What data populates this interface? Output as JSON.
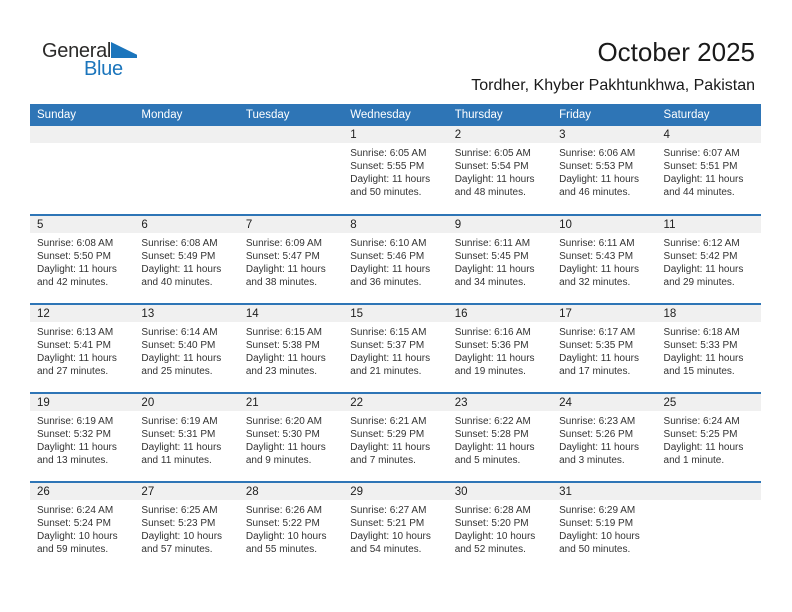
{
  "logo": {
    "text_top": "General",
    "text_bottom": "Blue"
  },
  "titles": {
    "month_year": "October 2025",
    "location": "Tordher, Khyber Pakhtunkhwa, Pakistan"
  },
  "colors": {
    "header_blue": "#2E75B6",
    "separator_blue": "#2E75B6",
    "band_gray": "#F0F0F0",
    "logo_blue": "#1B75BC"
  },
  "calendar": {
    "day_headers": [
      "Sunday",
      "Monday",
      "Tuesday",
      "Wednesday",
      "Thursday",
      "Friday",
      "Saturday"
    ],
    "weeks": [
      [
        null,
        null,
        null,
        {
          "date": "1",
          "sunrise": "Sunrise: 6:05 AM",
          "sunset": "Sunset: 5:55 PM",
          "daylight": "Daylight: 11 hours and 50 minutes."
        },
        {
          "date": "2",
          "sunrise": "Sunrise: 6:05 AM",
          "sunset": "Sunset: 5:54 PM",
          "daylight": "Daylight: 11 hours and 48 minutes."
        },
        {
          "date": "3",
          "sunrise": "Sunrise: 6:06 AM",
          "sunset": "Sunset: 5:53 PM",
          "daylight": "Daylight: 11 hours and 46 minutes."
        },
        {
          "date": "4",
          "sunrise": "Sunrise: 6:07 AM",
          "sunset": "Sunset: 5:51 PM",
          "daylight": "Daylight: 11 hours and 44 minutes."
        }
      ],
      [
        {
          "date": "5",
          "sunrise": "Sunrise: 6:08 AM",
          "sunset": "Sunset: 5:50 PM",
          "daylight": "Daylight: 11 hours and 42 minutes."
        },
        {
          "date": "6",
          "sunrise": "Sunrise: 6:08 AM",
          "sunset": "Sunset: 5:49 PM",
          "daylight": "Daylight: 11 hours and 40 minutes."
        },
        {
          "date": "7",
          "sunrise": "Sunrise: 6:09 AM",
          "sunset": "Sunset: 5:47 PM",
          "daylight": "Daylight: 11 hours and 38 minutes."
        },
        {
          "date": "8",
          "sunrise": "Sunrise: 6:10 AM",
          "sunset": "Sunset: 5:46 PM",
          "daylight": "Daylight: 11 hours and 36 minutes."
        },
        {
          "date": "9",
          "sunrise": "Sunrise: 6:11 AM",
          "sunset": "Sunset: 5:45 PM",
          "daylight": "Daylight: 11 hours and 34 minutes."
        },
        {
          "date": "10",
          "sunrise": "Sunrise: 6:11 AM",
          "sunset": "Sunset: 5:43 PM",
          "daylight": "Daylight: 11 hours and 32 minutes."
        },
        {
          "date": "11",
          "sunrise": "Sunrise: 6:12 AM",
          "sunset": "Sunset: 5:42 PM",
          "daylight": "Daylight: 11 hours and 29 minutes."
        }
      ],
      [
        {
          "date": "12",
          "sunrise": "Sunrise: 6:13 AM",
          "sunset": "Sunset: 5:41 PM",
          "daylight": "Daylight: 11 hours and 27 minutes."
        },
        {
          "date": "13",
          "sunrise": "Sunrise: 6:14 AM",
          "sunset": "Sunset: 5:40 PM",
          "daylight": "Daylight: 11 hours and 25 minutes."
        },
        {
          "date": "14",
          "sunrise": "Sunrise: 6:15 AM",
          "sunset": "Sunset: 5:38 PM",
          "daylight": "Daylight: 11 hours and 23 minutes."
        },
        {
          "date": "15",
          "sunrise": "Sunrise: 6:15 AM",
          "sunset": "Sunset: 5:37 PM",
          "daylight": "Daylight: 11 hours and 21 minutes."
        },
        {
          "date": "16",
          "sunrise": "Sunrise: 6:16 AM",
          "sunset": "Sunset: 5:36 PM",
          "daylight": "Daylight: 11 hours and 19 minutes."
        },
        {
          "date": "17",
          "sunrise": "Sunrise: 6:17 AM",
          "sunset": "Sunset: 5:35 PM",
          "daylight": "Daylight: 11 hours and 17 minutes."
        },
        {
          "date": "18",
          "sunrise": "Sunrise: 6:18 AM",
          "sunset": "Sunset: 5:33 PM",
          "daylight": "Daylight: 11 hours and 15 minutes."
        }
      ],
      [
        {
          "date": "19",
          "sunrise": "Sunrise: 6:19 AM",
          "sunset": "Sunset: 5:32 PM",
          "daylight": "Daylight: 11 hours and 13 minutes."
        },
        {
          "date": "20",
          "sunrise": "Sunrise: 6:19 AM",
          "sunset": "Sunset: 5:31 PM",
          "daylight": "Daylight: 11 hours and 11 minutes."
        },
        {
          "date": "21",
          "sunrise": "Sunrise: 6:20 AM",
          "sunset": "Sunset: 5:30 PM",
          "daylight": "Daylight: 11 hours and 9 minutes."
        },
        {
          "date": "22",
          "sunrise": "Sunrise: 6:21 AM",
          "sunset": "Sunset: 5:29 PM",
          "daylight": "Daylight: 11 hours and 7 minutes."
        },
        {
          "date": "23",
          "sunrise": "Sunrise: 6:22 AM",
          "sunset": "Sunset: 5:28 PM",
          "daylight": "Daylight: 11 hours and 5 minutes."
        },
        {
          "date": "24",
          "sunrise": "Sunrise: 6:23 AM",
          "sunset": "Sunset: 5:26 PM",
          "daylight": "Daylight: 11 hours and 3 minutes."
        },
        {
          "date": "25",
          "sunrise": "Sunrise: 6:24 AM",
          "sunset": "Sunset: 5:25 PM",
          "daylight": "Daylight: 11 hours and 1 minute."
        }
      ],
      [
        {
          "date": "26",
          "sunrise": "Sunrise: 6:24 AM",
          "sunset": "Sunset: 5:24 PM",
          "daylight": "Daylight: 10 hours and 59 minutes."
        },
        {
          "date": "27",
          "sunrise": "Sunrise: 6:25 AM",
          "sunset": "Sunset: 5:23 PM",
          "daylight": "Daylight: 10 hours and 57 minutes."
        },
        {
          "date": "28",
          "sunrise": "Sunrise: 6:26 AM",
          "sunset": "Sunset: 5:22 PM",
          "daylight": "Daylight: 10 hours and 55 minutes."
        },
        {
          "date": "29",
          "sunrise": "Sunrise: 6:27 AM",
          "sunset": "Sunset: 5:21 PM",
          "daylight": "Daylight: 10 hours and 54 minutes."
        },
        {
          "date": "30",
          "sunrise": "Sunrise: 6:28 AM",
          "sunset": "Sunset: 5:20 PM",
          "daylight": "Daylight: 10 hours and 52 minutes."
        },
        {
          "date": "31",
          "sunrise": "Sunrise: 6:29 AM",
          "sunset": "Sunset: 5:19 PM",
          "daylight": "Daylight: 10 hours and 50 minutes."
        },
        null
      ]
    ]
  }
}
